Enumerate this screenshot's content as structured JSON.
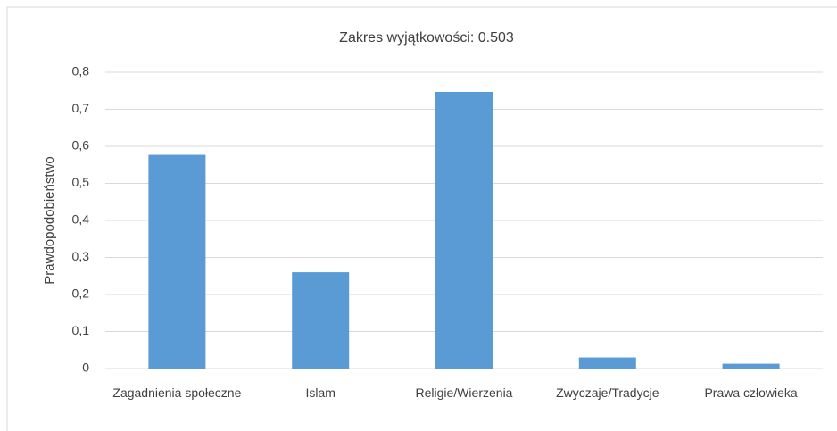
{
  "chart_data": {
    "type": "bar",
    "title": "Zakres wyjątkowości: 0.503",
    "y_label": "Prawdopodobieństwo",
    "categories": [
      "Zagadnienia społeczne",
      "Islam",
      "Religie/Wierzenia",
      "Zwyczaje/Tradycje",
      "Prawa człowieka"
    ],
    "values": [
      0.577,
      0.26,
      0.747,
      0.03,
      0.013
    ],
    "color": "#5b9bd5",
    "ylim": [
      0,
      0.8
    ],
    "yticks": [
      0,
      {
        "value": 0.1,
        "label": "0,1"
      },
      {
        "value": 0.2,
        "label": "0,2"
      },
      {
        "value": 0.3,
        "label": "0,3"
      },
      {
        "value": 0.4,
        "label": "0,4"
      },
      {
        "value": 0.5,
        "label": "0,5"
      },
      {
        "value": 0.6,
        "label": "0,6"
      },
      {
        "value": 0.7,
        "label": "0,7"
      },
      {
        "value": 0.8,
        "label": "0,8"
      }
    ],
    "grid": true
  }
}
